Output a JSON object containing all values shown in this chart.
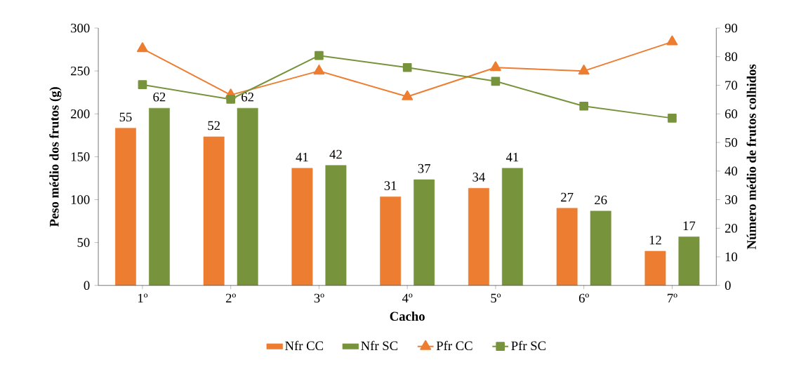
{
  "chart_data": {
    "type": "bar",
    "xlabel": "Cacho",
    "ylabel": "Peso médio dos frutos (g)",
    "y2label": "Número médio  de frutos colhidos",
    "categories": [
      "1º",
      "2º",
      "3º",
      "4º",
      "5º",
      "6º",
      "7º"
    ],
    "series": [
      {
        "name": "Nfr CC",
        "axis": "y2",
        "color": "#ed7d31",
        "values": [
          55,
          52,
          41,
          31,
          34,
          27,
          12
        ],
        "value_labels": [
          "55",
          "52",
          "41",
          "31",
          "34",
          "27",
          "12"
        ]
      },
      {
        "name": "Nfr SC",
        "axis": "y2",
        "color": "#77933c",
        "values": [
          62,
          62,
          42,
          37,
          41,
          26,
          17
        ],
        "value_labels": [
          "62",
          "62",
          "42",
          "37",
          "41",
          "26",
          "17"
        ]
      },
      {
        "name": "Pfr CC",
        "type": "line",
        "color": "#ed7d31",
        "marker": "triangle",
        "values": [
          276,
          222,
          250,
          220,
          254,
          250,
          284
        ]
      },
      {
        "name": "Pfr SC",
        "type": "line",
        "color": "#77933c",
        "marker": "square",
        "values": [
          234,
          217,
          268,
          254,
          238,
          209,
          195
        ]
      }
    ],
    "ylim": [
      0,
      300
    ],
    "yticks": [
      0,
      50,
      100,
      150,
      200,
      250,
      300
    ],
    "y2lim": [
      0,
      90
    ],
    "y2ticks": [
      0,
      10,
      20,
      30,
      40,
      50,
      60,
      70,
      80,
      90
    ],
    "legend": "bottom",
    "grid": false
  }
}
